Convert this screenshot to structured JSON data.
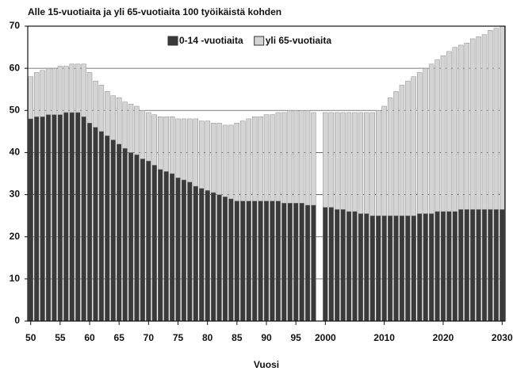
{
  "chart_data": {
    "type": "stacked-bar",
    "title": "Alle 15-vuotiaita ja yli 65-vuotiaita 100 työikäistä kohden",
    "x_label": "Vuosi",
    "x": [
      1950,
      1951,
      1952,
      1953,
      1954,
      1955,
      1956,
      1957,
      1958,
      1959,
      1960,
      1961,
      1962,
      1963,
      1964,
      1965,
      1966,
      1967,
      1968,
      1969,
      1970,
      1971,
      1972,
      1973,
      1974,
      1975,
      1976,
      1977,
      1978,
      1979,
      1980,
      1981,
      1982,
      1983,
      1984,
      1985,
      1986,
      1987,
      1988,
      1989,
      1990,
      1991,
      1992,
      1993,
      1994,
      1995,
      1996,
      1997,
      1998,
      1999,
      2000,
      2001,
      2002,
      2003,
      2004,
      2005,
      2006,
      2007,
      2008,
      2009,
      2010,
      2011,
      2012,
      2013,
      2014,
      2015,
      2016,
      2017,
      2018,
      2019,
      2020,
      2021,
      2022,
      2023,
      2024,
      2025,
      2026,
      2027,
      2028,
      2029,
      2030
    ],
    "series": [
      {
        "name": "0-14 -vuotiaita",
        "color": "#3a3a3a",
        "values": [
          48,
          48.5,
          48.5,
          49,
          49,
          49,
          49.5,
          49.5,
          49.5,
          48.5,
          47,
          46,
          45,
          44,
          43,
          42,
          41,
          40,
          39.5,
          38.5,
          38,
          37,
          36,
          35.5,
          35,
          34,
          33.5,
          33,
          32,
          31.5,
          31,
          30.5,
          30,
          29.5,
          29,
          28.5,
          28.5,
          28.5,
          28.5,
          28.5,
          28.5,
          28.5,
          28.5,
          28,
          28,
          28,
          28,
          27.5,
          27.5,
          null,
          27,
          27,
          26.5,
          26.5,
          26,
          26,
          25.5,
          25.5,
          25,
          25,
          25,
          25,
          25,
          25,
          25,
          25,
          25.5,
          25.5,
          25.5,
          26,
          26,
          26,
          26,
          26.5,
          26.5,
          26.5,
          26.5,
          26.5,
          26.5,
          26.5,
          26.5
        ]
      },
      {
        "name": "yli 65-vuotiaita",
        "color": "#d4d4d4",
        "values": [
          10,
          10.5,
          11,
          11,
          11,
          11.5,
          11,
          11.5,
          11.5,
          12.5,
          12,
          11,
          11,
          10.5,
          10.5,
          11,
          11,
          11.5,
          11.5,
          11.5,
          11.5,
          12,
          12.5,
          13,
          13.5,
          14,
          14.5,
          15,
          16,
          16,
          16.5,
          16.5,
          17,
          17,
          17.5,
          18.5,
          19,
          19.5,
          20,
          20,
          20.5,
          20.5,
          21,
          21.5,
          22,
          22,
          22,
          22.5,
          22,
          null,
          22.5,
          22.5,
          23,
          23,
          23.5,
          23.5,
          24,
          24,
          24.5,
          25,
          26,
          28,
          29.5,
          31,
          32,
          33,
          33.5,
          34.5,
          35.5,
          36,
          37,
          38,
          39,
          39,
          39.5,
          40.5,
          41,
          41.5,
          42.5,
          43,
          43.5
        ]
      }
    ],
    "xlim": [
      1949.5,
      2030.5
    ],
    "xticks": [
      {
        "value": 1950,
        "label": "50"
      },
      {
        "value": 1955,
        "label": "55"
      },
      {
        "value": 1960,
        "label": "60"
      },
      {
        "value": 1965,
        "label": "65"
      },
      {
        "value": 1970,
        "label": "70"
      },
      {
        "value": 1975,
        "label": "75"
      },
      {
        "value": 1980,
        "label": "80"
      },
      {
        "value": 1985,
        "label": "85"
      },
      {
        "value": 1990,
        "label": "90"
      },
      {
        "value": 1995,
        "label": "95"
      },
      2000,
      2010,
      2020,
      2030
    ],
    "ylim": [
      0,
      70
    ],
    "yticks": [
      0,
      10,
      20,
      30,
      40,
      50,
      60,
      70
    ],
    "grid": true,
    "legend": "top"
  }
}
